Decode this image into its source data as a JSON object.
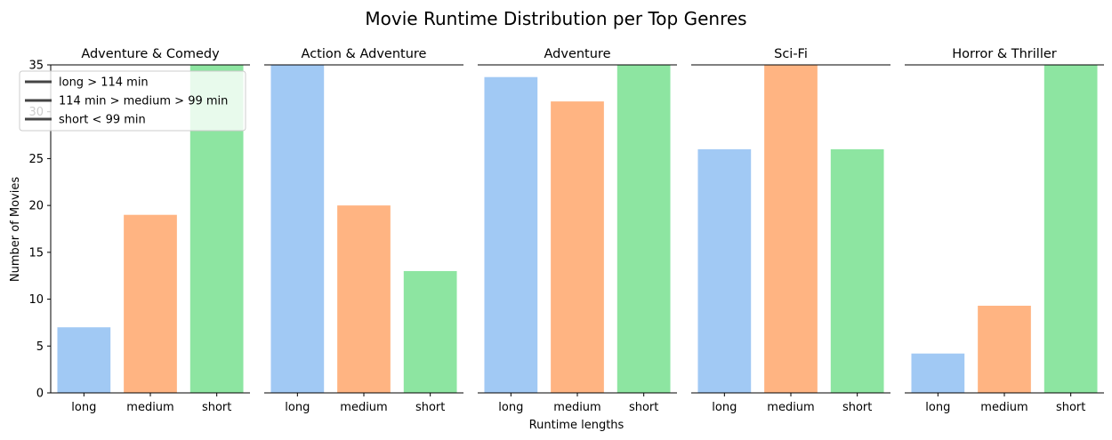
{
  "chart_data": {
    "type": "bar",
    "title": "Movie Runtime Distribution per Top Genres",
    "xlabel": "Runtime lengths",
    "ylabel": "Number of Movies",
    "ylim": [
      0,
      35
    ],
    "yticks": [
      0,
      5,
      10,
      15,
      20,
      25,
      30,
      35
    ],
    "categories": [
      "long",
      "medium",
      "short"
    ],
    "colors": [
      "#a1c9f4",
      "#ffb482",
      "#8de5a1"
    ],
    "panels": [
      {
        "title": "Adventure & Comedy",
        "values": [
          7,
          19,
          35
        ]
      },
      {
        "title": "Action & Adventure",
        "values": [
          35,
          20,
          13
        ]
      },
      {
        "title": "Adventure",
        "values": [
          33.7,
          31.1,
          35
        ]
      },
      {
        "title": "Sci-Fi",
        "values": [
          26,
          35,
          26
        ]
      },
      {
        "title": "Horror & Thriller",
        "values": [
          4.2,
          9.3,
          35
        ]
      }
    ],
    "legend": {
      "placement": "top-left",
      "color": "#444444",
      "entries": [
        "long > 114 min",
        "114 min > medium > 99 min",
        "short < 99 min"
      ]
    }
  }
}
